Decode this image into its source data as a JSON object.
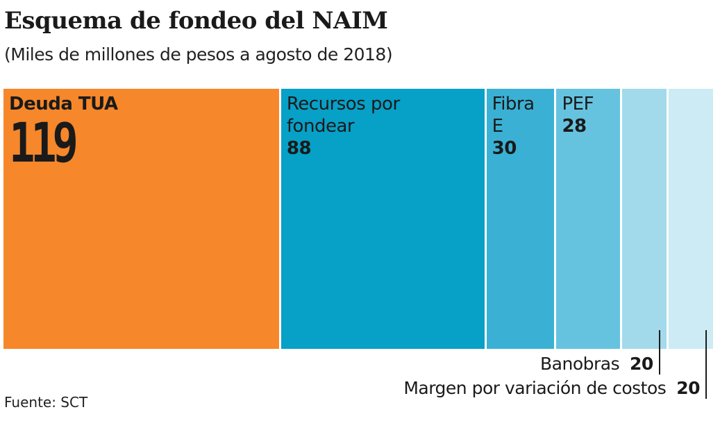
{
  "title": "Esquema de fondeo del NAIM",
  "subtitle": "(Miles de millones de pesos a agosto de 2018)",
  "source": "Fuente: SCT",
  "chart_data": {
    "type": "bar",
    "orientation": "horizontal-stacked-proportional",
    "categories": [
      "Deuda TUA",
      "Recursos por fondear",
      "Fibra E",
      "PEF",
      "Banobras",
      "Margen por variación de costos"
    ],
    "values": [
      119,
      88,
      30,
      28,
      20,
      20
    ],
    "colors": [
      "#F6872A",
      "#07A0C7",
      "#3AB1D4",
      "#66C3E0",
      "#A2DAEC",
      "#CCEBF4"
    ],
    "title": "Esquema de fondeo del NAIM",
    "subtitle": "(Miles de millones de pesos a agosto de 2018)",
    "labels_inside": [
      true,
      true,
      true,
      true,
      false,
      false
    ]
  }
}
